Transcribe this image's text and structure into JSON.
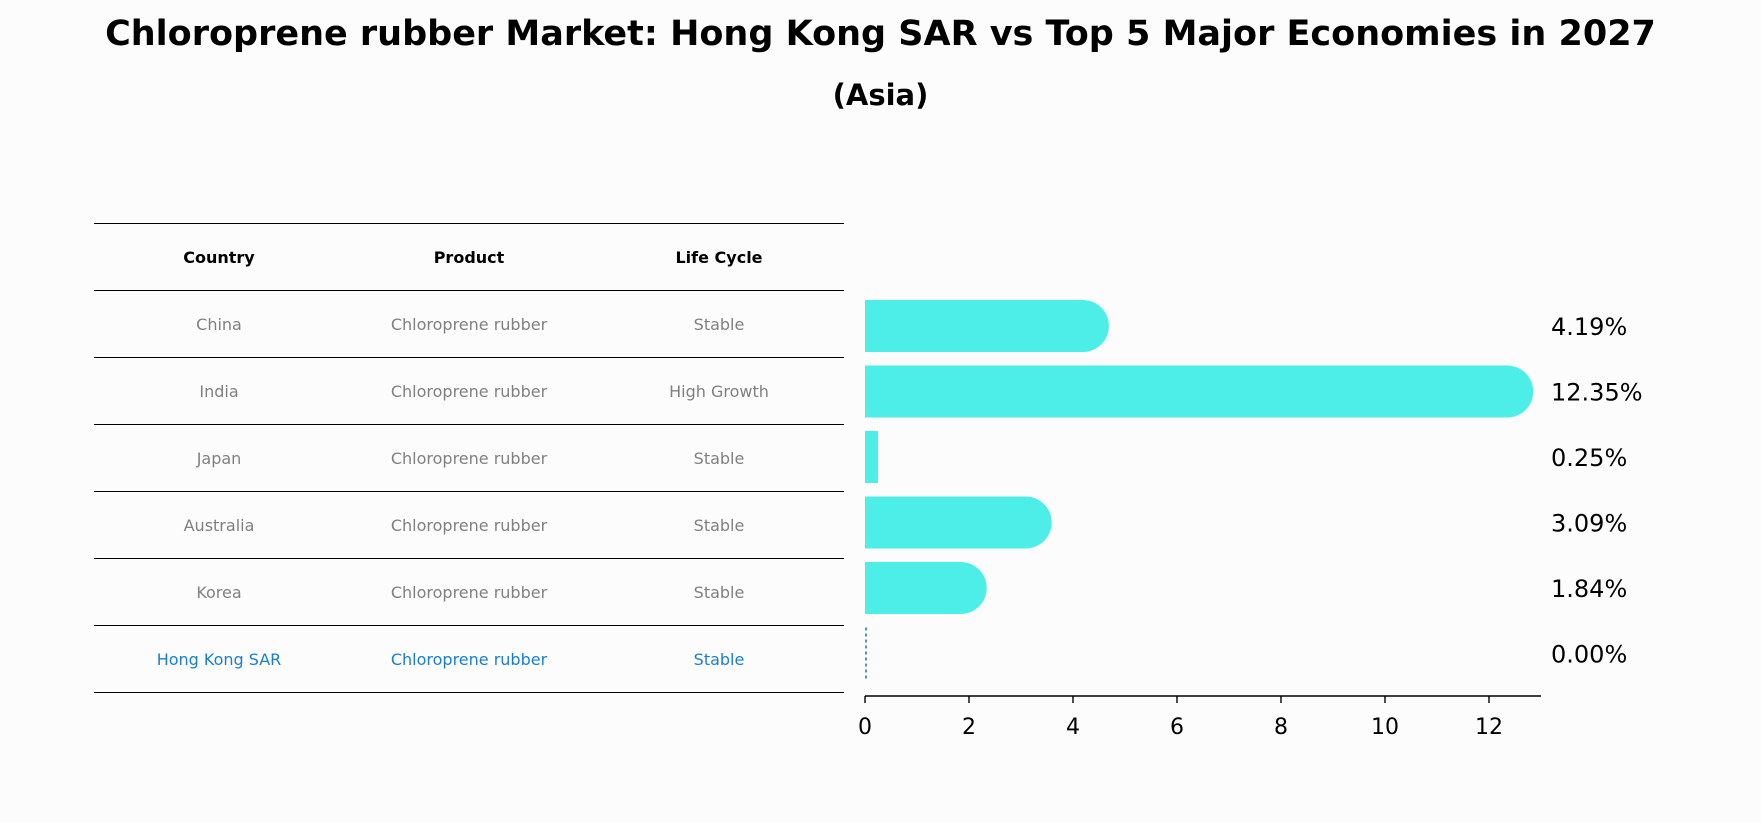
{
  "title": "Chloroprene rubber Market: Hong Kong SAR vs Top 5 Major Economies in 2027",
  "subtitle": "(Asia)",
  "colors": {
    "bar": "#4dede8",
    "highlight": "#1a7ecf",
    "muted_text": "#808080"
  },
  "table": {
    "headers": [
      "Country",
      "Product",
      "Life Cycle"
    ],
    "rows": [
      {
        "country": "China",
        "product": "Chloroprene rubber",
        "life_cycle": "Stable"
      },
      {
        "country": "India",
        "product": "Chloroprene rubber",
        "life_cycle": "High Growth"
      },
      {
        "country": "Japan",
        "product": "Chloroprene rubber",
        "life_cycle": "Stable"
      },
      {
        "country": "Australia",
        "product": "Chloroprene rubber",
        "life_cycle": "Stable"
      },
      {
        "country": "Korea",
        "product": "Chloroprene rubber",
        "life_cycle": "Stable"
      },
      {
        "country": "Hong Kong SAR",
        "product": "Chloroprene rubber",
        "life_cycle": "Stable"
      }
    ]
  },
  "chart_data": {
    "type": "bar",
    "orientation": "horizontal",
    "categories": [
      "China",
      "India",
      "Japan",
      "Australia",
      "Korea",
      "Hong Kong SAR"
    ],
    "values": [
      4.19,
      12.35,
      0.25,
      3.09,
      1.84,
      0.0
    ],
    "value_labels": [
      "4.19%",
      "12.35%",
      "0.25%",
      "3.09%",
      "1.84%",
      "0.00%"
    ],
    "highlight_category": "Hong Kong SAR",
    "xlim": [
      0,
      13
    ],
    "xticks": [
      0,
      2,
      4,
      6,
      8,
      10,
      12
    ],
    "xlabel": "",
    "ylabel": "",
    "grid": false
  }
}
